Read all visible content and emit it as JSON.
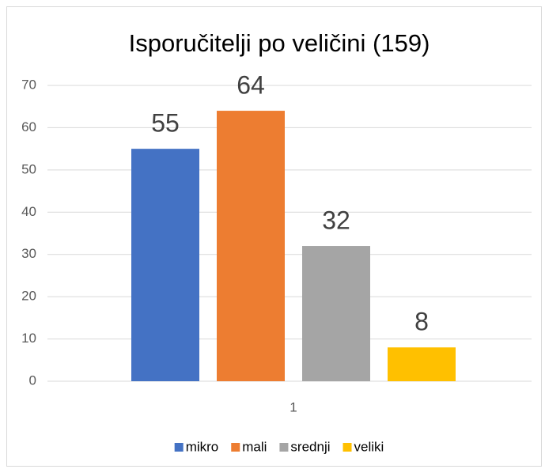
{
  "chart_data": {
    "type": "bar",
    "title": "Isporučitelji po veličini (159)",
    "categories": [
      "1"
    ],
    "series": [
      {
        "name": "mikro",
        "color": "#4472c4",
        "values": [
          55
        ]
      },
      {
        "name": "mali",
        "color": "#ed7d31",
        "values": [
          64
        ]
      },
      {
        "name": "srednji",
        "color": "#a5a5a5",
        "values": [
          32
        ]
      },
      {
        "name": "veliki",
        "color": "#ffc000",
        "values": [
          8
        ]
      }
    ],
    "ylim": [
      0,
      70
    ],
    "yticks": [
      0,
      10,
      20,
      30,
      40,
      50,
      60,
      70
    ],
    "grid": true,
    "legend": "bottom"
  }
}
